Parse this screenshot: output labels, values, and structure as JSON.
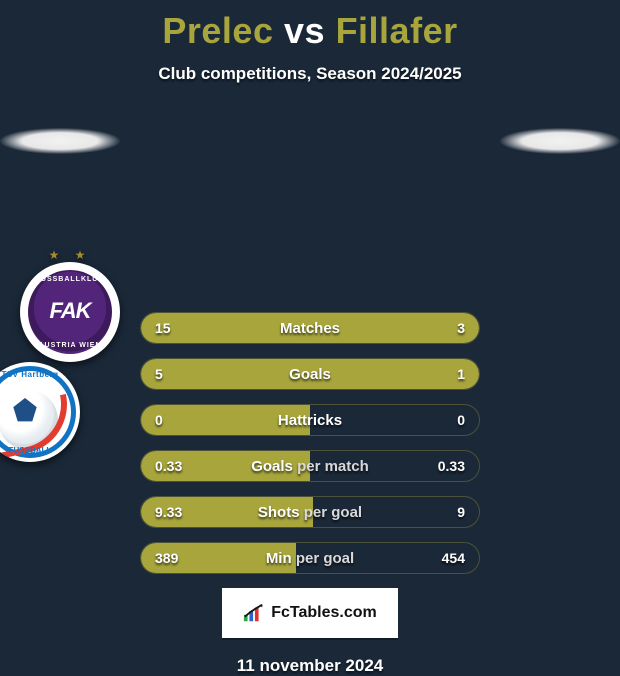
{
  "colors": {
    "background": "#1a2838",
    "title_player": "#a7a53b",
    "title_vs": "#ffffff",
    "bar_fill": "#a7a53b",
    "bar_border": "rgba(170,160,60,0.35)",
    "text": "#ffffff",
    "brand_bg": "#ffffff",
    "brand_text": "#111111"
  },
  "header": {
    "player1": "Prelec",
    "vs": "vs",
    "player2": "Fillafer",
    "subtitle": "Club competitions, Season 2024/2025"
  },
  "rows": [
    {
      "label": "Matches",
      "left": "15",
      "right": "3",
      "left_pct": 83,
      "right_pct": 17,
      "split_label": false
    },
    {
      "label": "Goals",
      "left": "5",
      "right": "1",
      "left_pct": 83,
      "right_pct": 17,
      "split_label": false
    },
    {
      "label": "Hattricks",
      "left": "0",
      "right": "0",
      "left_pct": 50,
      "right_pct": 0,
      "split_label": false
    },
    {
      "label": "Goals per match",
      "left": "0.33",
      "right": "0.33",
      "left_pct": 50,
      "right_pct": 0,
      "split_label": true,
      "label_half1": "Goals ",
      "label_half2": "per match"
    },
    {
      "label": "Shots per goal",
      "left": "9.33",
      "right": "9",
      "left_pct": 51,
      "right_pct": 0,
      "split_label": true,
      "label_half1": "Shots ",
      "label_half2": "per goal"
    },
    {
      "label": "Min per goal",
      "left": "389",
      "right": "454",
      "left_pct": 46,
      "right_pct": 0,
      "split_label": true,
      "label_half1": "Min ",
      "label_half2": "per goal"
    }
  ],
  "badges": {
    "left": {
      "name": "FK Austria Wien",
      "ring_top": "FUSSBALLKLUB",
      "ring_bottom": "AUSTRIA WIEN",
      "center": "FAK"
    },
    "right": {
      "name": "TSV Hartberg",
      "arc_top": "TSV Hartberg",
      "arc_bottom": "FUSSBALL"
    }
  },
  "brand": {
    "text": "FcTables.com"
  },
  "footer": {
    "date": "11 november 2024"
  }
}
